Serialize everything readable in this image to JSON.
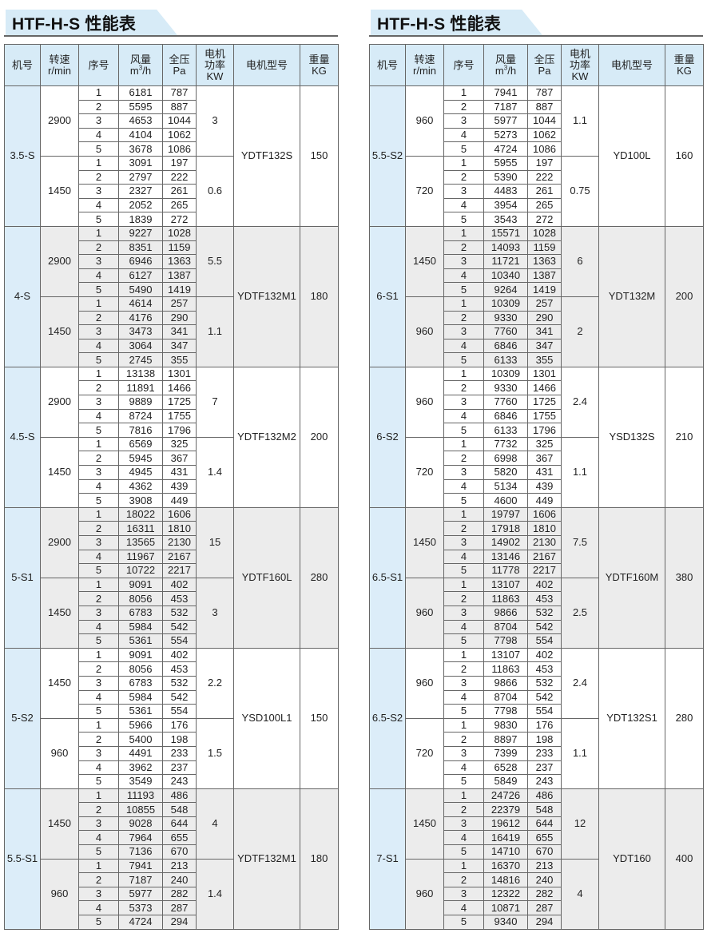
{
  "tables": [
    {
      "title": "HTF-H-S 性能表",
      "headers": {
        "model": "机号",
        "speed": [
          "转速",
          "r/min"
        ],
        "seq": "序号",
        "flow": [
          "风量",
          "m",
          "3",
          "/h"
        ],
        "pressure": [
          "全压",
          "Pa"
        ],
        "power": [
          "电机",
          "功率",
          "KW"
        ],
        "motor": "电机型号",
        "weight": [
          "重量",
          "KG"
        ]
      },
      "models": [
        {
          "model": "3.5-S",
          "motor": "YDTF132S",
          "weight": "150",
          "speeds": [
            {
              "rpm": "2900",
              "power": "3",
              "rows": [
                [
                  "1",
                  "6181",
                  "787"
                ],
                [
                  "2",
                  "5595",
                  "887"
                ],
                [
                  "3",
                  "4653",
                  "1044"
                ],
                [
                  "4",
                  "4104",
                  "1062"
                ],
                [
                  "5",
                  "3678",
                  "1086"
                ]
              ]
            },
            {
              "rpm": "1450",
              "power": "0.6",
              "rows": [
                [
                  "1",
                  "3091",
                  "197"
                ],
                [
                  "2",
                  "2797",
                  "222"
                ],
                [
                  "3",
                  "2327",
                  "261"
                ],
                [
                  "4",
                  "2052",
                  "265"
                ],
                [
                  "5",
                  "1839",
                  "272"
                ]
              ]
            }
          ]
        },
        {
          "model": "4-S",
          "motor": "YDTF132M1",
          "weight": "180",
          "speeds": [
            {
              "rpm": "2900",
              "power": "5.5",
              "rows": [
                [
                  "1",
                  "9227",
                  "1028"
                ],
                [
                  "2",
                  "8351",
                  "1159"
                ],
                [
                  "3",
                  "6946",
                  "1363"
                ],
                [
                  "4",
                  "6127",
                  "1387"
                ],
                [
                  "5",
                  "5490",
                  "1419"
                ]
              ]
            },
            {
              "rpm": "1450",
              "power": "1.1",
              "rows": [
                [
                  "1",
                  "4614",
                  "257"
                ],
                [
                  "2",
                  "4176",
                  "290"
                ],
                [
                  "3",
                  "3473",
                  "341"
                ],
                [
                  "4",
                  "3064",
                  "347"
                ],
                [
                  "5",
                  "2745",
                  "355"
                ]
              ]
            }
          ]
        },
        {
          "model": "4.5-S",
          "motor": "YDTF132M2",
          "weight": "200",
          "speeds": [
            {
              "rpm": "2900",
              "power": "7",
              "rows": [
                [
                  "1",
                  "13138",
                  "1301"
                ],
                [
                  "2",
                  "11891",
                  "1466"
                ],
                [
                  "3",
                  "9889",
                  "1725"
                ],
                [
                  "4",
                  "8724",
                  "1755"
                ],
                [
                  "5",
                  "7816",
                  "1796"
                ]
              ]
            },
            {
              "rpm": "1450",
              "power": "1.4",
              "rows": [
                [
                  "1",
                  "6569",
                  "325"
                ],
                [
                  "2",
                  "5945",
                  "367"
                ],
                [
                  "3",
                  "4945",
                  "431"
                ],
                [
                  "4",
                  "4362",
                  "439"
                ],
                [
                  "5",
                  "3908",
                  "449"
                ]
              ]
            }
          ]
        },
        {
          "model": "5-S1",
          "motor": "YDTF160L",
          "weight": "280",
          "speeds": [
            {
              "rpm": "2900",
              "power": "15",
              "rows": [
                [
                  "1",
                  "18022",
                  "1606"
                ],
                [
                  "2",
                  "16311",
                  "1810"
                ],
                [
                  "3",
                  "13565",
                  "2130"
                ],
                [
                  "4",
                  "11967",
                  "2167"
                ],
                [
                  "5",
                  "10722",
                  "2217"
                ]
              ]
            },
            {
              "rpm": "1450",
              "power": "3",
              "rows": [
                [
                  "1",
                  "9091",
                  "402"
                ],
                [
                  "2",
                  "8056",
                  "453"
                ],
                [
                  "3",
                  "6783",
                  "532"
                ],
                [
                  "4",
                  "5984",
                  "542"
                ],
                [
                  "5",
                  "5361",
                  "554"
                ]
              ]
            }
          ]
        },
        {
          "model": "5-S2",
          "motor": "YSD100L1",
          "weight": "150",
          "speeds": [
            {
              "rpm": "1450",
              "power": "2.2",
              "rows": [
                [
                  "1",
                  "9091",
                  "402"
                ],
                [
                  "2",
                  "8056",
                  "453"
                ],
                [
                  "3",
                  "6783",
                  "532"
                ],
                [
                  "4",
                  "5984",
                  "542"
                ],
                [
                  "5",
                  "5361",
                  "554"
                ]
              ]
            },
            {
              "rpm": "960",
              "power": "1.5",
              "rows": [
                [
                  "1",
                  "5966",
                  "176"
                ],
                [
                  "2",
                  "5400",
                  "198"
                ],
                [
                  "3",
                  "4491",
                  "233"
                ],
                [
                  "4",
                  "3962",
                  "237"
                ],
                [
                  "5",
                  "3549",
                  "243"
                ]
              ]
            }
          ]
        },
        {
          "model": "5.5-S1",
          "motor": "YDTF132M1",
          "weight": "180",
          "speeds": [
            {
              "rpm": "1450",
              "power": "4",
              "rows": [
                [
                  "1",
                  "11193",
                  "486"
                ],
                [
                  "2",
                  "10855",
                  "548"
                ],
                [
                  "3",
                  "9028",
                  "644"
                ],
                [
                  "4",
                  "7964",
                  "655"
                ],
                [
                  "5",
                  "7136",
                  "670"
                ]
              ]
            },
            {
              "rpm": "960",
              "power": "1.4",
              "rows": [
                [
                  "1",
                  "7941",
                  "213"
                ],
                [
                  "2",
                  "7187",
                  "240"
                ],
                [
                  "3",
                  "5977",
                  "282"
                ],
                [
                  "4",
                  "5373",
                  "287"
                ],
                [
                  "5",
                  "4724",
                  "294"
                ]
              ]
            }
          ]
        }
      ]
    },
    {
      "title": "HTF-H-S 性能表",
      "headers": {
        "model": "机号",
        "speed": [
          "转速",
          "r/min"
        ],
        "seq": "序号",
        "flow": [
          "风量",
          "m",
          "3",
          "/h"
        ],
        "pressure": [
          "全压",
          "Pa"
        ],
        "power": [
          "电机",
          "功率",
          "KW"
        ],
        "motor": "电机型号",
        "weight": [
          "重量",
          "KG"
        ]
      },
      "models": [
        {
          "model": "5.5-S2",
          "motor": "YD100L",
          "weight": "160",
          "speeds": [
            {
              "rpm": "960",
              "power": "1.1",
              "rows": [
                [
                  "1",
                  "7941",
                  "787"
                ],
                [
                  "2",
                  "7187",
                  "887"
                ],
                [
                  "3",
                  "5977",
                  "1044"
                ],
                [
                  "4",
                  "5273",
                  "1062"
                ],
                [
                  "5",
                  "4724",
                  "1086"
                ]
              ]
            },
            {
              "rpm": "720",
              "power": "0.75",
              "rows": [
                [
                  "1",
                  "5955",
                  "197"
                ],
                [
                  "2",
                  "5390",
                  "222"
                ],
                [
                  "3",
                  "4483",
                  "261"
                ],
                [
                  "4",
                  "3954",
                  "265"
                ],
                [
                  "5",
                  "3543",
                  "272"
                ]
              ]
            }
          ]
        },
        {
          "model": "6-S1",
          "motor": "YDT132M",
          "weight": "200",
          "speeds": [
            {
              "rpm": "1450",
              "power": "6",
              "rows": [
                [
                  "1",
                  "15571",
                  "1028"
                ],
                [
                  "2",
                  "14093",
                  "1159"
                ],
                [
                  "3",
                  "11721",
                  "1363"
                ],
                [
                  "4",
                  "10340",
                  "1387"
                ],
                [
                  "5",
                  "9264",
                  "1419"
                ]
              ]
            },
            {
              "rpm": "960",
              "power": "2",
              "rows": [
                [
                  "1",
                  "10309",
                  "257"
                ],
                [
                  "2",
                  "9330",
                  "290"
                ],
                [
                  "3",
                  "7760",
                  "341"
                ],
                [
                  "4",
                  "6846",
                  "347"
                ],
                [
                  "5",
                  "6133",
                  "355"
                ]
              ]
            }
          ]
        },
        {
          "model": "6-S2",
          "motor": "YSD132S",
          "weight": "210",
          "speeds": [
            {
              "rpm": "960",
              "power": "2.4",
              "rows": [
                [
                  "1",
                  "10309",
                  "1301"
                ],
                [
                  "2",
                  "9330",
                  "1466"
                ],
                [
                  "3",
                  "7760",
                  "1725"
                ],
                [
                  "4",
                  "6846",
                  "1755"
                ],
                [
                  "5",
                  "6133",
                  "1796"
                ]
              ]
            },
            {
              "rpm": "720",
              "power": "1.1",
              "rows": [
                [
                  "1",
                  "7732",
                  "325"
                ],
                [
                  "2",
                  "6998",
                  "367"
                ],
                [
                  "3",
                  "5820",
                  "431"
                ],
                [
                  "4",
                  "5134",
                  "439"
                ],
                [
                  "5",
                  "4600",
                  "449"
                ]
              ]
            }
          ]
        },
        {
          "model": "6.5-S1",
          "motor": "YDTF160M",
          "weight": "380",
          "speeds": [
            {
              "rpm": "1450",
              "power": "7.5",
              "rows": [
                [
                  "1",
                  "19797",
                  "1606"
                ],
                [
                  "2",
                  "17918",
                  "1810"
                ],
                [
                  "3",
                  "14902",
                  "2130"
                ],
                [
                  "4",
                  "13146",
                  "2167"
                ],
                [
                  "5",
                  "11778",
                  "2217"
                ]
              ]
            },
            {
              "rpm": "960",
              "power": "2.5",
              "rows": [
                [
                  "1",
                  "13107",
                  "402"
                ],
                [
                  "2",
                  "11863",
                  "453"
                ],
                [
                  "3",
                  "9866",
                  "532"
                ],
                [
                  "4",
                  "8704",
                  "542"
                ],
                [
                  "5",
                  "7798",
                  "554"
                ]
              ]
            }
          ]
        },
        {
          "model": "6.5-S2",
          "motor": "YDT132S1",
          "weight": "280",
          "speeds": [
            {
              "rpm": "960",
              "power": "2.4",
              "rows": [
                [
                  "1",
                  "13107",
                  "402"
                ],
                [
                  "2",
                  "11863",
                  "453"
                ],
                [
                  "3",
                  "9866",
                  "532"
                ],
                [
                  "4",
                  "8704",
                  "542"
                ],
                [
                  "5",
                  "7798",
                  "554"
                ]
              ]
            },
            {
              "rpm": "720",
              "power": "1.1",
              "rows": [
                [
                  "1",
                  "9830",
                  "176"
                ],
                [
                  "2",
                  "8897",
                  "198"
                ],
                [
                  "3",
                  "7399",
                  "233"
                ],
                [
                  "4",
                  "6528",
                  "237"
                ],
                [
                  "5",
                  "5849",
                  "243"
                ]
              ]
            }
          ]
        },
        {
          "model": "7-S1",
          "motor": "YDT160",
          "weight": "400",
          "speeds": [
            {
              "rpm": "1450",
              "power": "12",
              "rows": [
                [
                  "1",
                  "24726",
                  "486"
                ],
                [
                  "2",
                  "22379",
                  "548"
                ],
                [
                  "3",
                  "19612",
                  "644"
                ],
                [
                  "4",
                  "16419",
                  "655"
                ],
                [
                  "5",
                  "14710",
                  "670"
                ]
              ]
            },
            {
              "rpm": "960",
              "power": "4",
              "rows": [
                [
                  "1",
                  "16370",
                  "213"
                ],
                [
                  "2",
                  "14816",
                  "240"
                ],
                [
                  "3",
                  "12322",
                  "282"
                ],
                [
                  "4",
                  "10871",
                  "287"
                ],
                [
                  "5",
                  "9340",
                  "294"
                ]
              ]
            }
          ]
        }
      ]
    }
  ],
  "colors": {
    "header_bg": "#d7ebf7",
    "model_col_bg": "#dcedf9",
    "alt_group_bg": "#ececec",
    "border": "#666666"
  }
}
